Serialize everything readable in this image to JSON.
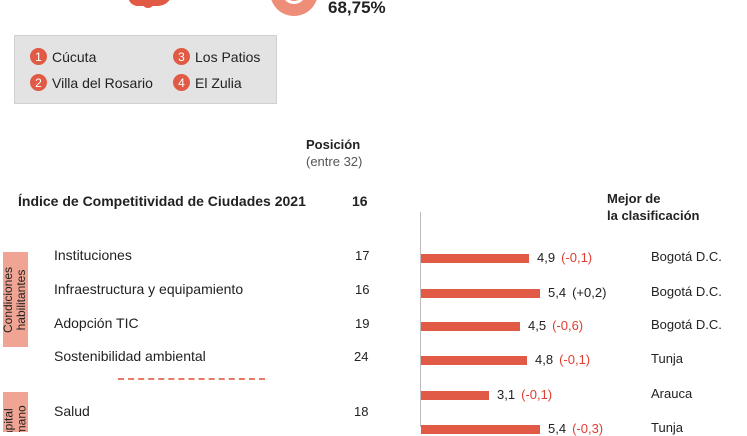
{
  "top": {
    "percent": "68,75%"
  },
  "legend": [
    {
      "num": "1",
      "name": "Cúcuta"
    },
    {
      "num": "3",
      "name": "Los Patios"
    },
    {
      "num": "2",
      "name": "Villa del Rosario"
    },
    {
      "num": "4",
      "name": "El Zulia"
    }
  ],
  "header": {
    "position": "Posición",
    "position_sub": "(entre 32)",
    "best": "Mejor de\nla clasificación"
  },
  "index": {
    "label": "Índice de Competitividad de Ciudades 2021",
    "value": "16"
  },
  "groups": [
    {
      "label": "Condiciones habilitantes",
      "label_line1": "Condiciones",
      "label_line2": "habilitantes"
    },
    {
      "label": "Capital humano",
      "label_line1": "Capital",
      "label_line2": "humano"
    }
  ],
  "rows": [
    {
      "name": "Instituciones",
      "position": "17",
      "score": 4.9,
      "score_text": "4,9",
      "change": "(-0,1)",
      "change_dir": "neg",
      "best": "Bogotá D.C."
    },
    {
      "name": "Infraestructura y equipamiento",
      "position": "16",
      "score": 5.4,
      "score_text": "5,4",
      "change": "(+0,2)",
      "change_dir": "pos",
      "best": "Bogotá D.C."
    },
    {
      "name": "Adopción TIC",
      "position": "19",
      "score": 4.5,
      "score_text": "4,5",
      "change": "(-0,6)",
      "change_dir": "neg",
      "best": "Bogotá D.C."
    },
    {
      "name": "Sostenibilidad ambiental",
      "position": "24",
      "score": 4.8,
      "score_text": "4,8",
      "change": "(-0,1)",
      "change_dir": "neg",
      "best": "Tunja"
    },
    {
      "name": "Salud",
      "position": "18",
      "score": 3.1,
      "score_text": "3,1",
      "change": "(-0,1)",
      "change_dir": "neg",
      "best": "Arauca"
    },
    {
      "name": "",
      "position": "",
      "score": 5.4,
      "score_text": "5,4",
      "change": "(-0,3)",
      "change_dir": "neg",
      "best": "Tunja"
    }
  ],
  "colors": {
    "accent": "#e05a45",
    "tab": "#f0a493",
    "negative": "#e03c31",
    "legend_bg": "#e3e3e3"
  }
}
